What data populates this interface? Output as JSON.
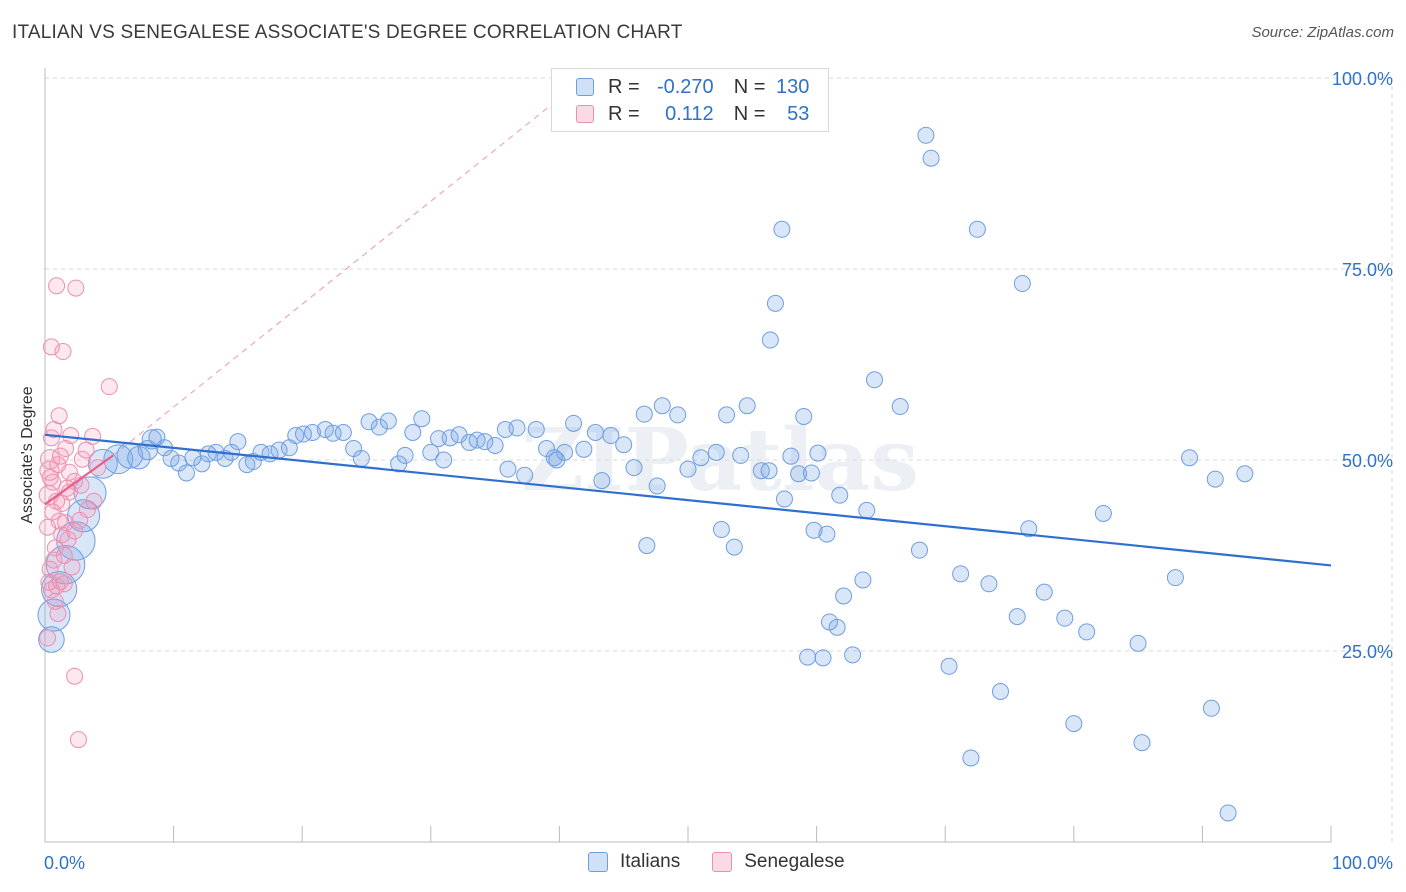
{
  "title": "ITALIAN VS SENEGALESE ASSOCIATE'S DEGREE CORRELATION CHART",
  "source": "Source: ZipAtlas.com",
  "watermark": "ZIPatlas",
  "colors": {
    "italians_fill": "rgba(120,165,230,0.28)",
    "italians_stroke": "#6f9ee0",
    "italians_line": "#2f6fd0",
    "senegalese_fill": "rgba(245,150,180,0.22)",
    "senegalese_stroke": "#ee8fb0",
    "senegalese_line": "#e8608a",
    "tick_label": "#2e72c9",
    "grid": "#d9d9d9"
  },
  "legend_top": {
    "rows": [
      {
        "r_label": "R =",
        "r_value": "-0.270",
        "n_label": "N =",
        "n_value": "130"
      },
      {
        "r_label": "R =",
        "r_value": "0.112",
        "n_label": "N =",
        "n_value": "53"
      }
    ]
  },
  "chart_data": {
    "type": "scatter",
    "title": "ITALIAN VS SENEGALESE ASSOCIATE'S DEGREE CORRELATION CHART",
    "xlabel": "",
    "ylabel": "Associate's Degree",
    "xlim": [
      0,
      100
    ],
    "ylim": [
      0,
      100
    ],
    "x_tick_labels": [
      "0.0%",
      "100.0%"
    ],
    "y_tick_labels": [
      "100.0%",
      "75.0%",
      "50.0%",
      "25.0%"
    ],
    "y_ticks": [
      100,
      75,
      50,
      25
    ],
    "grid": true,
    "legend": "top-center and bottom",
    "series": [
      {
        "name": "Italians",
        "r": -0.27,
        "n": 130,
        "trend": {
          "x0": 0,
          "y0": 53.3,
          "x1": 100,
          "y1": 36.2
        },
        "points": [
          [
            0.5,
            26.5,
            16
          ],
          [
            0.7,
            29.7,
            20
          ],
          [
            1.1,
            33.1,
            22
          ],
          [
            1.6,
            36.3,
            24
          ],
          [
            2.4,
            39.4,
            24
          ],
          [
            3.0,
            42.7,
            20
          ],
          [
            3.5,
            45.7,
            20
          ],
          [
            4.5,
            49.5,
            18
          ],
          [
            5.7,
            50.1,
            18
          ],
          [
            6.6,
            50.6,
            16
          ],
          [
            7.3,
            50.3,
            14
          ],
          [
            8.0,
            51.3,
            12
          ],
          [
            8.3,
            52.7,
            12
          ],
          [
            8.7,
            53.0,
            10
          ],
          [
            9.3,
            51.6,
            10
          ],
          [
            9.8,
            50.2,
            10
          ],
          [
            10.4,
            49.6,
            10
          ],
          [
            11.0,
            48.3,
            10
          ],
          [
            11.5,
            50.3,
            10
          ],
          [
            12.2,
            49.5,
            10
          ],
          [
            12.7,
            50.8,
            10
          ],
          [
            13.3,
            51.0,
            10
          ],
          [
            14.0,
            50.2,
            10
          ],
          [
            14.5,
            51.0,
            10
          ],
          [
            15.0,
            52.4,
            10
          ],
          [
            15.7,
            49.4,
            10
          ],
          [
            16.2,
            49.8,
            10
          ],
          [
            16.8,
            51.0,
            10
          ],
          [
            17.5,
            50.8,
            10
          ],
          [
            18.2,
            51.3,
            10
          ],
          [
            19.0,
            51.6,
            10
          ],
          [
            19.5,
            53.2,
            10
          ],
          [
            20.1,
            53.4,
            10
          ],
          [
            20.8,
            53.6,
            10
          ],
          [
            21.8,
            54.0,
            10
          ],
          [
            22.4,
            53.5,
            10
          ],
          [
            23.2,
            53.6,
            10
          ],
          [
            24.0,
            51.5,
            10
          ],
          [
            24.6,
            50.2,
            10
          ],
          [
            25.2,
            55.0,
            10
          ],
          [
            26.0,
            54.3,
            10
          ],
          [
            26.7,
            55.1,
            10
          ],
          [
            27.5,
            49.5,
            10
          ],
          [
            28.0,
            50.6,
            10
          ],
          [
            28.6,
            53.6,
            10
          ],
          [
            29.3,
            55.4,
            10
          ],
          [
            30.0,
            51.0,
            10
          ],
          [
            30.6,
            52.8,
            10
          ],
          [
            31.0,
            50.0,
            10
          ],
          [
            31.5,
            52.9,
            10
          ],
          [
            32.2,
            53.3,
            10
          ],
          [
            33.0,
            52.3,
            10
          ],
          [
            33.6,
            52.6,
            10
          ],
          [
            34.2,
            52.4,
            10
          ],
          [
            35.0,
            51.9,
            10
          ],
          [
            35.8,
            54.0,
            10
          ],
          [
            36.7,
            54.2,
            10
          ],
          [
            37.3,
            48.0,
            10
          ],
          [
            38.2,
            54.0,
            10
          ],
          [
            39.0,
            51.5,
            10
          ],
          [
            39.6,
            50.3,
            10
          ],
          [
            40.4,
            51.0,
            10
          ],
          [
            41.1,
            54.8,
            10
          ],
          [
            41.9,
            51.4,
            10
          ],
          [
            42.8,
            53.6,
            10
          ],
          [
            43.3,
            47.3,
            10
          ],
          [
            44.0,
            53.2,
            10
          ],
          [
            45.0,
            52.0,
            10
          ],
          [
            45.8,
            49.0,
            10
          ],
          [
            46.6,
            56.0,
            10
          ],
          [
            47.6,
            46.6,
            10
          ],
          [
            48.0,
            57.1,
            10
          ],
          [
            49.2,
            55.9,
            10
          ],
          [
            39.8,
            50.0,
            10
          ],
          [
            50.0,
            48.8,
            10
          ],
          [
            51.0,
            50.3,
            10
          ],
          [
            52.2,
            51.0,
            10
          ],
          [
            53.0,
            55.9,
            10
          ],
          [
            54.1,
            50.6,
            10
          ],
          [
            54.6,
            57.1,
            10
          ],
          [
            55.7,
            48.6,
            10
          ],
          [
            56.3,
            48.6,
            10
          ],
          [
            57.5,
            44.9,
            10
          ],
          [
            58.0,
            50.5,
            10
          ],
          [
            59.0,
            55.7,
            10
          ],
          [
            60.1,
            50.9,
            10
          ],
          [
            36.0,
            48.8,
            10
          ],
          [
            46.8,
            38.8,
            10
          ],
          [
            52.6,
            40.9,
            10
          ],
          [
            53.6,
            38.6,
            10
          ],
          [
            58.6,
            48.2,
            10
          ],
          [
            59.6,
            48.3,
            10
          ],
          [
            59.8,
            40.8,
            10
          ],
          [
            60.8,
            40.3,
            10
          ],
          [
            62.1,
            32.2,
            10
          ],
          [
            61.6,
            28.1,
            10
          ],
          [
            61.0,
            28.8,
            10
          ],
          [
            59.3,
            24.2,
            10
          ],
          [
            60.5,
            24.1,
            10
          ],
          [
            62.8,
            24.5,
            10
          ],
          [
            63.9,
            43.4,
            10
          ],
          [
            63.6,
            34.3,
            10
          ],
          [
            61.8,
            45.4,
            10
          ],
          [
            64.5,
            60.5,
            10
          ],
          [
            56.4,
            65.7,
            10
          ],
          [
            56.8,
            70.5,
            10
          ],
          [
            57.3,
            80.2,
            10
          ],
          [
            68.5,
            92.5,
            10
          ],
          [
            68.9,
            89.5,
            10
          ],
          [
            72.5,
            80.2,
            10
          ],
          [
            76.0,
            73.1,
            10
          ],
          [
            66.5,
            57.0,
            10
          ],
          [
            71.2,
            35.1,
            10
          ],
          [
            73.4,
            33.8,
            10
          ],
          [
            75.6,
            29.5,
            10
          ],
          [
            77.7,
            32.7,
            10
          ],
          [
            79.3,
            29.3,
            10
          ],
          [
            81.0,
            27.5,
            10
          ],
          [
            82.3,
            43.0,
            10
          ],
          [
            85.0,
            26.0,
            10
          ],
          [
            87.9,
            34.6,
            10
          ],
          [
            89.0,
            50.3,
            10
          ],
          [
            91.0,
            47.5,
            10
          ],
          [
            93.3,
            48.2,
            10
          ],
          [
            68.0,
            38.2,
            10
          ],
          [
            72.0,
            11.0,
            10
          ],
          [
            80.0,
            15.5,
            10
          ],
          [
            85.3,
            13.0,
            10
          ],
          [
            90.7,
            17.5,
            10
          ],
          [
            92.0,
            3.8,
            10
          ],
          [
            70.3,
            23.0,
            10
          ],
          [
            74.3,
            19.7,
            10
          ],
          [
            76.5,
            41.0,
            10
          ]
        ]
      },
      {
        "name": "Senegalese",
        "r": 0.112,
        "n": 53,
        "trend": {
          "x0": 0,
          "y0": 44.2,
          "x1": 5.3,
          "y1": 50.6
        },
        "extension": {
          "x0": 5.3,
          "y0": 50.6,
          "x1": 40.2,
          "y1": 97.6
        },
        "points": [
          [
            0.2,
            41.2,
            10
          ],
          [
            0.3,
            45.4,
            12
          ],
          [
            0.35,
            48.6,
            12
          ],
          [
            0.4,
            50.1,
            12
          ],
          [
            0.5,
            52.9,
            10
          ],
          [
            0.6,
            47.1,
            10
          ],
          [
            0.7,
            54.0,
            10
          ],
          [
            0.9,
            44.6,
            10
          ],
          [
            1.0,
            49.4,
            10
          ],
          [
            1.1,
            55.8,
            10
          ],
          [
            0.5,
            64.8,
            10
          ],
          [
            0.9,
            72.8,
            10
          ],
          [
            1.4,
            64.2,
            10
          ],
          [
            2.4,
            72.5,
            10
          ],
          [
            1.6,
            51.5,
            10
          ],
          [
            2.0,
            53.2,
            10
          ],
          [
            1.9,
            45.8,
            10
          ],
          [
            1.3,
            44.3,
            10
          ],
          [
            1.1,
            42.0,
            10
          ],
          [
            1.6,
            41.8,
            10
          ],
          [
            0.8,
            38.5,
            10
          ],
          [
            0.7,
            36.9,
            10
          ],
          [
            0.4,
            35.7,
            10
          ],
          [
            0.9,
            33.5,
            10
          ],
          [
            1.2,
            34.1,
            10
          ],
          [
            1.5,
            37.5,
            10
          ],
          [
            1.8,
            39.6,
            10
          ],
          [
            2.3,
            40.7,
            10
          ],
          [
            2.7,
            42.1,
            10
          ],
          [
            3.3,
            43.5,
            10
          ],
          [
            3.8,
            44.6,
            10
          ],
          [
            0.3,
            34.0,
            10
          ],
          [
            0.5,
            33.0,
            10
          ],
          [
            0.2,
            26.7,
            10
          ],
          [
            1.0,
            29.9,
            10
          ],
          [
            2.3,
            21.7,
            10
          ],
          [
            2.6,
            13.4,
            10
          ],
          [
            5.0,
            59.6,
            10
          ],
          [
            3.7,
            53.1,
            10
          ],
          [
            2.9,
            50.1,
            10
          ],
          [
            2.3,
            47.2,
            10
          ],
          [
            1.7,
            46.3,
            10
          ],
          [
            0.6,
            43.2,
            10
          ],
          [
            1.3,
            40.2,
            10
          ],
          [
            2.1,
            36.0,
            10
          ],
          [
            1.5,
            33.8,
            10
          ],
          [
            0.8,
            31.5,
            10
          ],
          [
            2.8,
            46.7,
            10
          ],
          [
            1.9,
            48.4,
            10
          ],
          [
            3.2,
            51.3,
            10
          ],
          [
            4.1,
            49.0,
            10
          ],
          [
            0.4,
            47.7,
            10
          ],
          [
            1.2,
            50.5,
            10
          ]
        ]
      }
    ]
  },
  "legend_bottom": {
    "items": [
      "Italians",
      "Senegalese"
    ]
  }
}
